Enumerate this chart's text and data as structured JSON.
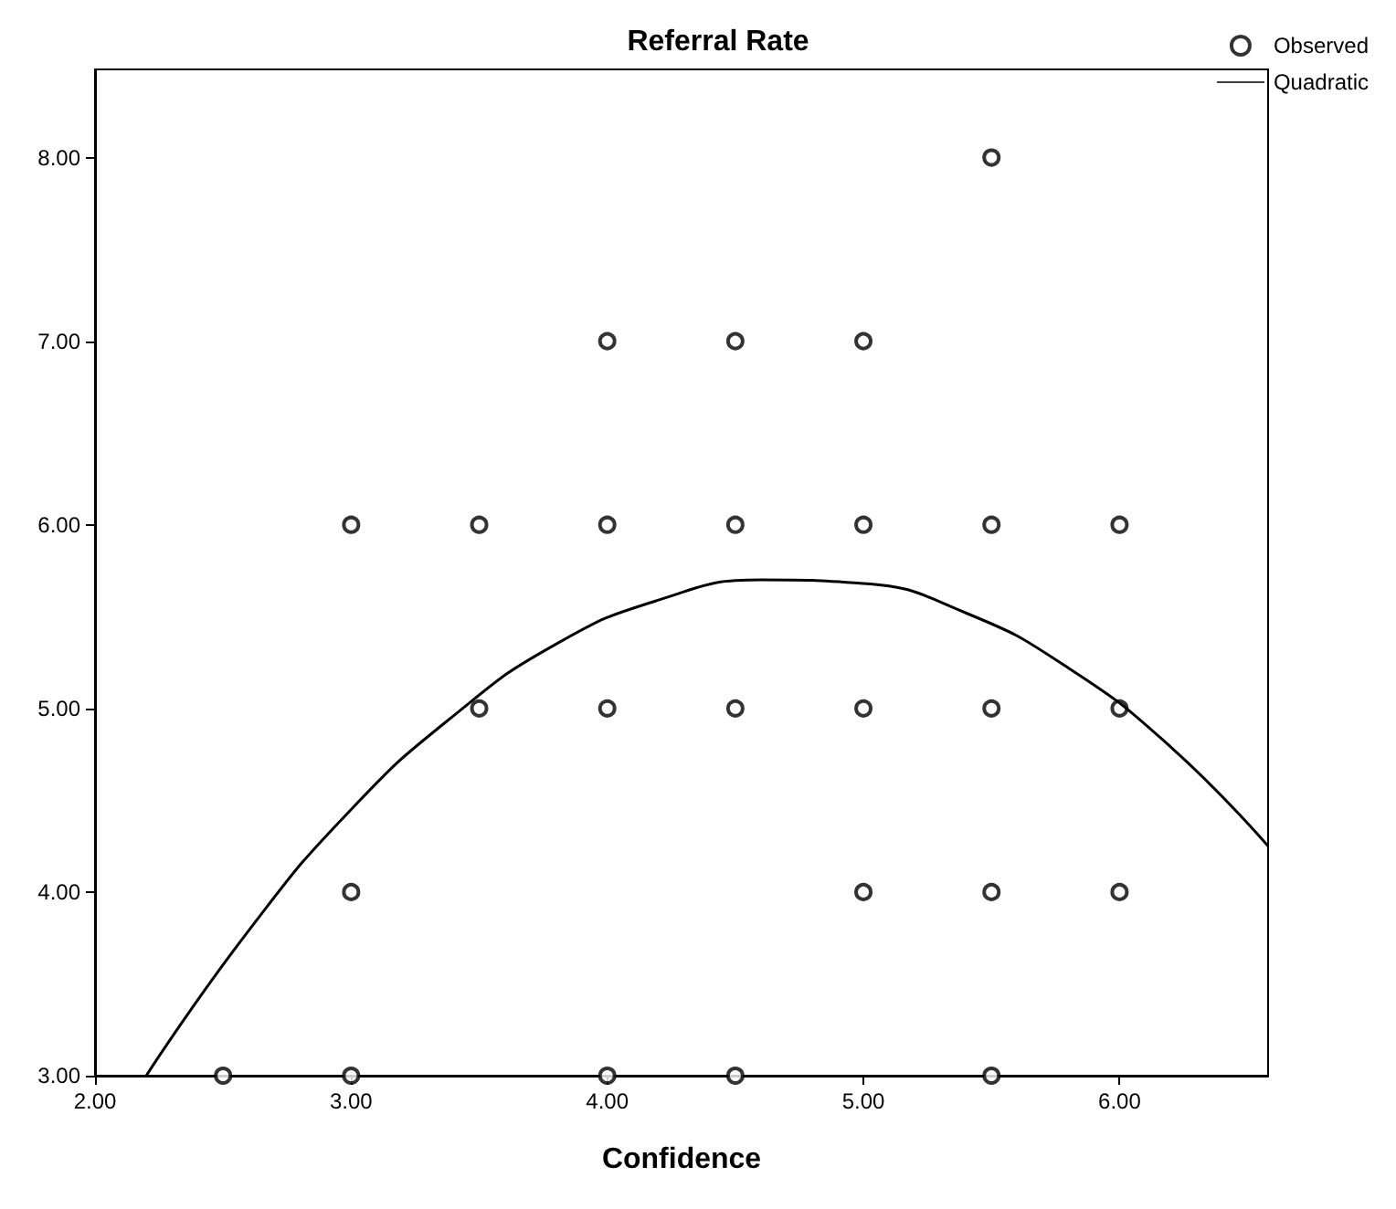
{
  "chart_data": {
    "type": "scatter",
    "title": "Referral Rate",
    "xlabel": "Confidence",
    "xlim": [
      2,
      6.58
    ],
    "ylim": [
      3,
      8.48
    ],
    "xticks": [
      {
        "value": 2,
        "label": "2.00"
      },
      {
        "value": 3,
        "label": "3.00"
      },
      {
        "value": 4,
        "label": "4.00"
      },
      {
        "value": 5,
        "label": "5.00"
      },
      {
        "value": 6,
        "label": "6.00"
      }
    ],
    "yticks": [
      {
        "value": 3,
        "label": "3.00"
      },
      {
        "value": 4,
        "label": "4.00"
      },
      {
        "value": 5,
        "label": "5.00"
      },
      {
        "value": 6,
        "label": "6.00"
      },
      {
        "value": 7,
        "label": "7.00"
      },
      {
        "value": 8,
        "label": "8.00"
      }
    ],
    "grid": false,
    "legend": "top right",
    "marker": "circle",
    "series": [
      {
        "name": "Observed",
        "color": "#000000",
        "x": [
          2.5,
          3,
          3,
          3,
          3.5,
          3.5,
          4,
          4,
          4,
          4,
          4.5,
          4.5,
          4.5,
          4.5,
          5,
          5,
          5,
          5,
          5.5,
          5.5,
          5.5,
          5.5,
          5.5,
          6,
          6,
          6
        ],
        "values": [
          3,
          6,
          4,
          3,
          6,
          5,
          7,
          6,
          5,
          3,
          7,
          6,
          5,
          3,
          7,
          6,
          5,
          4,
          8,
          6,
          5,
          4,
          3,
          6,
          5,
          4
        ]
      },
      {
        "name": "Quadratic",
        "type": "line",
        "marker": "none",
        "color": "#000000",
        "x": [
          2.2,
          2.6,
          3.0,
          3.4,
          3.8,
          4.2,
          4.6,
          5.0,
          5.4,
          5.8,
          6.2,
          6.58
        ],
        "values": [
          3.0,
          3.79,
          4.45,
          4.96,
          5.35,
          5.59,
          5.7,
          5.68,
          5.52,
          5.22,
          4.79,
          4.25
        ]
      }
    ]
  }
}
